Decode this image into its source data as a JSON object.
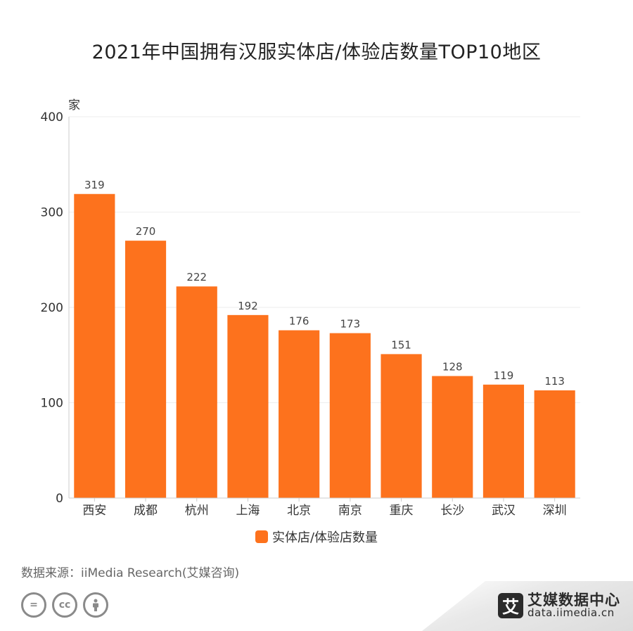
{
  "colors": {
    "bar": "#fd721d",
    "grid": "#eeeeee",
    "axis": "#cccccc"
  },
  "chart_data": {
    "type": "bar",
    "title": "2021年中国拥有汉服实体店/体验店数量TOP10地区",
    "ylabel": "家",
    "categories": [
      "西安",
      "成都",
      "杭州",
      "上海",
      "北京",
      "南京",
      "重庆",
      "长沙",
      "武汉",
      "深圳"
    ],
    "series": [
      {
        "name": "实体店/体验店数量",
        "values": [
          319,
          270,
          222,
          192,
          176,
          173,
          151,
          128,
          119,
          113
        ]
      }
    ],
    "ylim": [
      0,
      400
    ],
    "yticks": [
      0,
      100,
      200,
      300,
      400
    ],
    "grid": true,
    "legend_position": "bottom"
  },
  "source": "数据来源：iiMedia Research(艾媒咨询)",
  "license_icons": [
    "equals-icon",
    "cc-icon",
    "person-icon"
  ],
  "brand": {
    "logo": "艾",
    "name": "艾媒数据中心",
    "url": "data.iimedia.cn"
  }
}
